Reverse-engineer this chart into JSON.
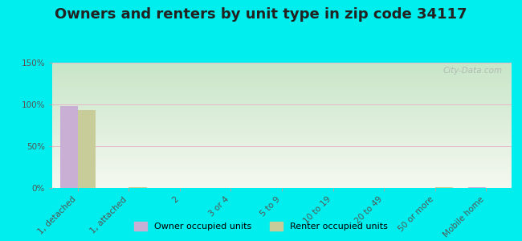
{
  "title": "Owners and renters by unit type in zip code 34117",
  "categories": [
    "1, detached",
    "1, attached",
    "2",
    "3 or 4",
    "5 to 9",
    "10 to 19",
    "20 to 49",
    "50 or more",
    "Mobile home"
  ],
  "owner_values": [
    98,
    0,
    0,
    0,
    0,
    0,
    0,
    0,
    1
  ],
  "renter_values": [
    93,
    1,
    0,
    0,
    0,
    0,
    0,
    1,
    0
  ],
  "owner_color": "#c9afd4",
  "renter_color": "#c8cc99",
  "background_color": "#00eeee",
  "plot_bg_color_top_left": "#c8e6c8",
  "plot_bg_color_bottom_right": "#f5f8f0",
  "ylim": [
    0,
    150
  ],
  "yticks": [
    0,
    50,
    100,
    150
  ],
  "ytick_labels": [
    "0%",
    "50%",
    "100%",
    "150%"
  ],
  "grid_color": "#e8b8c8",
  "bar_width": 0.35,
  "watermark": "City-Data.com",
  "legend_owner": "Owner occupied units",
  "legend_renter": "Renter occupied units",
  "title_fontsize": 13,
  "tick_fontsize": 7.5,
  "tick_color": "#555555"
}
